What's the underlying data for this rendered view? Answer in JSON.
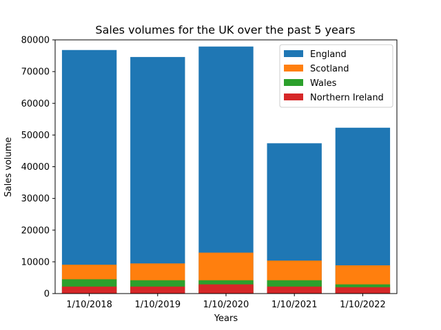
{
  "chart_data": {
    "type": "bar",
    "stacked": "overlay",
    "title": "Sales volumes for the UK over the past 5 years",
    "xlabel": "Years",
    "ylabel": "Sales volume",
    "categories": [
      "1/10/2018",
      "1/10/2019",
      "1/10/2020",
      "1/10/2021",
      "1/10/2022"
    ],
    "ylim": [
      0,
      80000
    ],
    "yticks": [
      0,
      10000,
      20000,
      30000,
      40000,
      50000,
      60000,
      70000,
      80000
    ],
    "grid": false,
    "legend_position": "top-right",
    "series": [
      {
        "name": "England",
        "color": "#1f77b4",
        "values": [
          76800,
          74600,
          77900,
          47400,
          52300
        ]
      },
      {
        "name": "Scotland",
        "color": "#ff7f0e",
        "values": [
          9100,
          9500,
          12900,
          10400,
          8900
        ]
      },
      {
        "name": "Wales",
        "color": "#2ca02c",
        "values": [
          4500,
          4200,
          4200,
          4200,
          2900
        ]
      },
      {
        "name": "Northern Ireland",
        "color": "#d62728",
        "values": [
          2200,
          2200,
          2900,
          2200,
          2000
        ]
      }
    ]
  }
}
